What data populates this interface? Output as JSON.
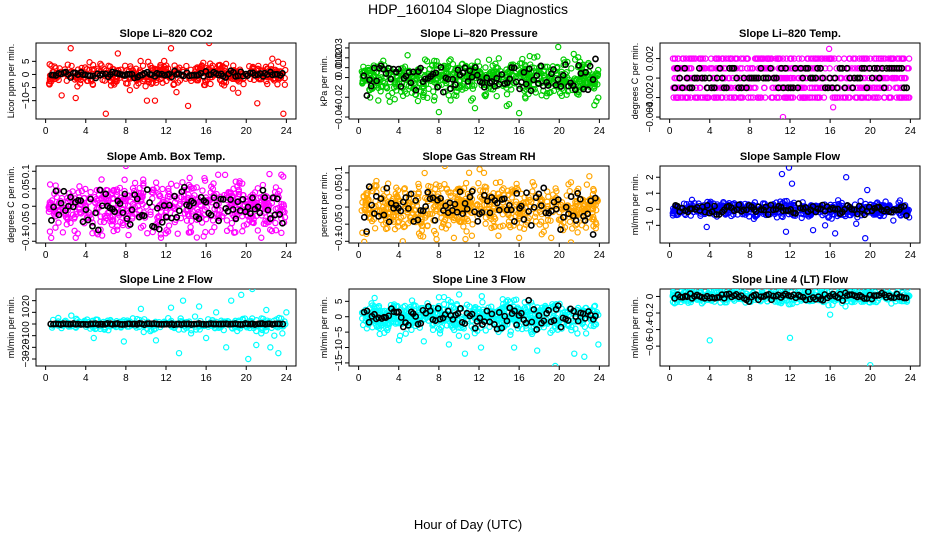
{
  "title": "HDP_160104  Slope Diagnostics",
  "xlabel": "Hour of Day (UTC)",
  "chart_data": [
    {
      "id": "co2",
      "type": "scatter",
      "title": "Slope Li-820 CO2",
      "ylabel": "Licor ppm per min.",
      "color": "#ff0000",
      "x_ticks": [
        0,
        4,
        8,
        12,
        16,
        20,
        24
      ],
      "xlim": [
        -0.96,
        24.96
      ],
      "y_ticks": [
        -10,
        -5,
        0,
        5
      ],
      "ylim": [
        -17,
        12
      ],
      "spread": 2.2,
      "n": 420,
      "n_black": 95,
      "black_spread": 0.6,
      "outliers": [
        [
          1.6,
          -8
        ],
        [
          2.5,
          10
        ],
        [
          3.0,
          -9
        ],
        [
          6.0,
          -15
        ],
        [
          7.2,
          8
        ],
        [
          8.4,
          -6
        ],
        [
          10.1,
          -10
        ],
        [
          10.9,
          -10
        ],
        [
          12.5,
          10
        ],
        [
          14.2,
          -12
        ],
        [
          15.8,
          -4
        ],
        [
          16.3,
          12
        ],
        [
          19.2,
          -7
        ],
        [
          21.1,
          -11
        ],
        [
          22.6,
          6
        ],
        [
          23.7,
          -15
        ]
      ]
    },
    {
      "id": "pressure",
      "type": "scatter",
      "title": "Slope Li-820 Pressure",
      "ylabel": "kPa per min.",
      "color": "#00cc00",
      "x_ticks": [
        0,
        4,
        8,
        12,
        16,
        20,
        24
      ],
      "xlim": [
        -0.96,
        24.96
      ],
      "y_ticks": [
        -0.04,
        -0.02,
        0.0,
        0.01,
        0.02,
        0.03
      ],
      "ylim": [
        -0.042,
        0.035
      ],
      "spread": 0.009,
      "n": 620,
      "n_black": 95,
      "black_spread": 0.008,
      "outliers": [
        [
          3.6,
          -0.022
        ],
        [
          8.0,
          -0.035
        ],
        [
          11.6,
          -0.031
        ],
        [
          13.0,
          0.018
        ],
        [
          15.0,
          -0.027
        ],
        [
          16.0,
          -0.036
        ],
        [
          19.9,
          0.031
        ],
        [
          23.5,
          -0.028
        ],
        [
          23.7,
          -0.024
        ]
      ]
    },
    {
      "id": "temp",
      "type": "scatter",
      "title": "Slope Li-820 Temp.",
      "ylabel": "degrees C per min.",
      "color": "#ff00ff",
      "x_ticks": [
        0,
        4,
        8,
        12,
        16,
        20,
        24
      ],
      "xlim": [
        -0.96,
        24.96
      ],
      "y_ticks": [
        -0.004,
        -0.002,
        0.0,
        0.002
      ],
      "ylim": [
        -0.0042,
        0.0036
      ],
      "levels": [
        0.002,
        0.001,
        0.0,
        -0.001,
        -0.002
      ],
      "n": 640,
      "n_black": 95,
      "black_levels": [
        0.001,
        0.0,
        -0.001
      ],
      "outliers": [
        [
          11.3,
          -0.004
        ],
        [
          15.9,
          0.003
        ],
        [
          16.3,
          -0.003
        ],
        [
          17.4,
          0.002
        ]
      ]
    },
    {
      "id": "ambbox",
      "type": "scatter",
      "title": "Slope Amb. Box Temp.",
      "ylabel": "degrees C per min.",
      "color": "#ff00ff",
      "x_ticks": [
        0,
        4,
        8,
        12,
        16,
        20,
        24
      ],
      "xlim": [
        -0.96,
        24.96
      ],
      "y_ticks": [
        -0.1,
        -0.05,
        0.0,
        0.05,
        0.1
      ],
      "ylim": [
        -0.105,
        0.115
      ],
      "spread": 0.035,
      "n": 560,
      "n_black": 95,
      "black_spread": 0.03,
      "outliers": [
        [
          3.0,
          -0.09
        ],
        [
          5.2,
          -0.08
        ],
        [
          8.0,
          0.115
        ],
        [
          11.5,
          -0.09
        ],
        [
          17.2,
          0.09
        ],
        [
          21.5,
          -0.09
        ],
        [
          23.5,
          0.09
        ]
      ]
    },
    {
      "id": "gasrh",
      "type": "scatter",
      "title": "Slope Gas Stream RH",
      "ylabel": "percent per min.",
      "color": "#ffa500",
      "x_ticks": [
        0,
        4,
        8,
        12,
        16,
        20,
        24
      ],
      "xlim": [
        -0.96,
        24.96
      ],
      "y_ticks": [
        -0.1,
        -0.05,
        0.0,
        0.05,
        0.1
      ],
      "ylim": [
        -0.105,
        0.12
      ],
      "spread": 0.035,
      "n": 620,
      "n_black": 95,
      "black_spread": 0.03,
      "outliers": [
        [
          4.4,
          -0.1
        ],
        [
          8.6,
          0.12
        ],
        [
          9.5,
          -0.09
        ],
        [
          12.5,
          0.1
        ],
        [
          16.0,
          -0.09
        ],
        [
          19.2,
          -0.09
        ],
        [
          23.0,
          0.09
        ]
      ]
    },
    {
      "id": "sampleflow",
      "type": "scatter",
      "title": "Slope Sample Flow",
      "ylabel": "ml/min per min.",
      "color": "#0000ff",
      "x_ticks": [
        0,
        4,
        8,
        12,
        16,
        20,
        24
      ],
      "xlim": [
        -0.96,
        24.96
      ],
      "y_ticks": [
        -1,
        0,
        1,
        2
      ],
      "ylim": [
        -2.1,
        2.7
      ],
      "spread": 0.22,
      "n": 560,
      "n_black": 95,
      "black_spread": 0.15,
      "outliers": [
        [
          3.7,
          -1.1
        ],
        [
          11.2,
          2.2
        ],
        [
          11.6,
          -1.4
        ],
        [
          11.9,
          2.6
        ],
        [
          12.2,
          1.6
        ],
        [
          14.3,
          -1.3
        ],
        [
          15.5,
          -1.0
        ],
        [
          16.5,
          -1.5
        ],
        [
          17.6,
          2.0
        ],
        [
          18.6,
          -0.9
        ],
        [
          19.5,
          -1.8
        ],
        [
          19.7,
          1.2
        ],
        [
          22.3,
          -0.7
        ]
      ]
    },
    {
      "id": "line2",
      "type": "scatter",
      "title": "Slope Line 2 Flow",
      "ylabel": "ml/min per min.",
      "color": "#00ffff",
      "x_ticks": [
        0,
        4,
        8,
        12,
        16,
        20,
        24
      ],
      "xlim": [
        -0.96,
        24.96
      ],
      "y_ticks": [
        -30,
        -20,
        -10,
        0,
        10,
        20
      ],
      "ylim": [
        -36,
        30
      ],
      "spread": 2.5,
      "n": 280,
      "n_black": 95,
      "black_spread": 0.3,
      "outliers": [
        [
          4.8,
          -12
        ],
        [
          7.8,
          -15
        ],
        [
          9.5,
          13
        ],
        [
          11.0,
          -14
        ],
        [
          12.5,
          14
        ],
        [
          13.3,
          -25
        ],
        [
          13.7,
          20
        ],
        [
          14.5,
          -8
        ],
        [
          15.3,
          15
        ],
        [
          16.0,
          -12
        ],
        [
          17.0,
          10
        ],
        [
          18.0,
          -20
        ],
        [
          18.5,
          20
        ],
        [
          19.1,
          -6
        ],
        [
          19.5,
          25
        ],
        [
          20.2,
          -30
        ],
        [
          20.6,
          30
        ],
        [
          21.0,
          -18
        ],
        [
          21.5,
          -8
        ],
        [
          22.0,
          12
        ],
        [
          22.4,
          -20
        ],
        [
          22.8,
          -10
        ],
        [
          23.2,
          -25
        ],
        [
          23.6,
          -8
        ],
        [
          24.0,
          10
        ]
      ]
    },
    {
      "id": "line3",
      "type": "scatter",
      "title": "Slope Line 3 Flow",
      "ylabel": "ml/min per min.",
      "color": "#00ffff",
      "x_ticks": [
        0,
        4,
        8,
        12,
        16,
        20,
        24
      ],
      "xlim": [
        -0.96,
        24.96
      ],
      "y_ticks": [
        -15,
        -10,
        -5,
        0,
        5
      ],
      "ylim": [
        -16,
        9
      ],
      "spread": 2.4,
      "n": 620,
      "n_black": 95,
      "black_spread": 2.0,
      "outliers": [
        [
          6.5,
          -8
        ],
        [
          9.0,
          -9
        ],
        [
          10.6,
          -12
        ],
        [
          12.2,
          -10
        ],
        [
          15.5,
          -10
        ],
        [
          17.8,
          -11
        ],
        [
          19.6,
          -16
        ],
        [
          21.5,
          -12
        ],
        [
          22.5,
          -13
        ],
        [
          23.9,
          -9
        ]
      ]
    },
    {
      "id": "line4",
      "type": "scatter",
      "title": "Slope Line 4 (LT) Flow",
      "ylabel": "ml/min per min.",
      "color": "#00ffff",
      "x_ticks": [
        0,
        4,
        8,
        12,
        16,
        20,
        24
      ],
      "xlim": [
        -0.96,
        24.96
      ],
      "y_ticks": [
        -0.6,
        -0.4,
        -0.2,
        0.0
      ],
      "ylim": [
        -0.84,
        0.09
      ],
      "spread": 0.04,
      "n": 500,
      "n_black": 95,
      "black_spread": 0.025,
      "outliers": [
        [
          4.0,
          -0.53
        ],
        [
          12.0,
          -0.5
        ],
        [
          16.0,
          -0.22
        ],
        [
          20.0,
          -0.83
        ],
        [
          20.5,
          0.05
        ]
      ]
    }
  ]
}
